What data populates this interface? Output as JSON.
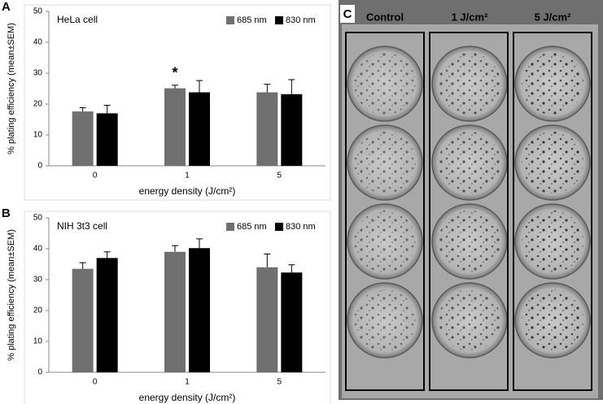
{
  "chart_data": [
    {
      "type": "bar",
      "panel_label": "A",
      "title": "HeLa cell",
      "x_label": "energy density (J/cm²)",
      "y_label": "% plating efficiency (mean±SEM)",
      "categories": [
        "0",
        "1",
        "5"
      ],
      "series": [
        {
          "name": "685 nm",
          "color": "#707070",
          "values": [
            17.6,
            25.1,
            23.8
          ],
          "errors": [
            1.2,
            1.0,
            2.6
          ]
        },
        {
          "name": "830 nm",
          "color": "#000000",
          "values": [
            17.0,
            23.8,
            23.2
          ],
          "errors": [
            2.6,
            3.8,
            4.7
          ]
        }
      ],
      "annotation": "*",
      "ylim": [
        0,
        50
      ],
      "yticks": [
        0,
        10,
        20,
        30,
        40,
        50
      ],
      "legend": "upper right"
    },
    {
      "type": "bar",
      "panel_label": "B",
      "title": "NIH 3t3 cell",
      "x_label": "energy density (J/cm²)",
      "y_label": "% plating efficiency (mean±SEM)",
      "categories": [
        "0",
        "1",
        "5"
      ],
      "series": [
        {
          "name": "685 nm",
          "color": "#707070",
          "values": [
            33.5,
            39.0,
            34.0
          ],
          "errors": [
            2.0,
            2.0,
            4.3
          ]
        },
        {
          "name": "830 nm",
          "color": "#000000",
          "values": [
            37.0,
            40.2,
            32.3
          ],
          "errors": [
            2.0,
            3.0,
            2.5
          ]
        }
      ],
      "ylim": [
        0,
        50
      ],
      "yticks": [
        0,
        10,
        20,
        30,
        40,
        50
      ],
      "legend": "upper right"
    }
  ],
  "photo": {
    "panel_label": "C",
    "columns": [
      "Control",
      "1 J/cm²",
      "5 J/cm²"
    ]
  }
}
